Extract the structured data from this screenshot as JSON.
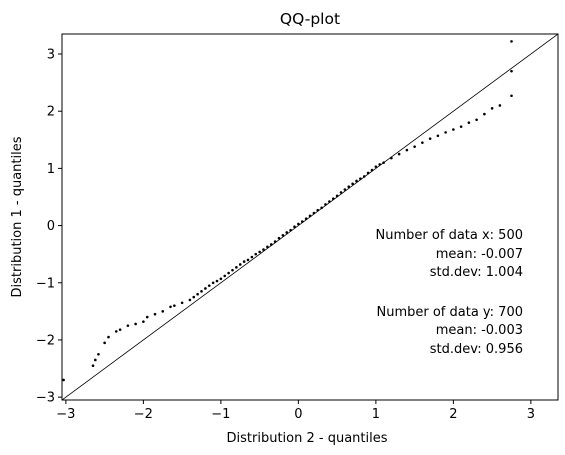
{
  "chart_data": {
    "type": "scatter",
    "title": "QQ-plot",
    "xlabel": "Distribution 2 - quantiles",
    "ylabel": "Distribution 1 - quantiles",
    "xlim": [
      -3.05,
      3.35
    ],
    "ylim": [
      -3.05,
      3.35
    ],
    "xticks": [
      -3,
      -2,
      -1,
      0,
      1,
      2,
      3
    ],
    "yticks": [
      -3,
      -2,
      -1,
      0,
      1,
      2,
      3
    ],
    "grid": false,
    "reference_line": {
      "x": [
        -3.05,
        3.35
      ],
      "y": [
        -3.05,
        3.35
      ]
    },
    "series": [
      {
        "marker_color": "#000000",
        "x": [
          -3.03,
          -2.65,
          -2.62,
          -2.58,
          -2.5,
          -2.45,
          -2.35,
          -2.3,
          -2.2,
          -2.1,
          -2.0,
          -1.95,
          -1.85,
          -1.75,
          -1.65,
          -1.6,
          -1.5,
          -1.4,
          -1.35,
          -1.3,
          -1.25,
          -1.2,
          -1.15,
          -1.1,
          -1.05,
          -1.0,
          -0.95,
          -0.9,
          -0.85,
          -0.8,
          -0.75,
          -0.7,
          -0.65,
          -0.6,
          -0.55,
          -0.5,
          -0.45,
          -0.4,
          -0.35,
          -0.3,
          -0.25,
          -0.2,
          -0.15,
          -0.1,
          -0.05,
          0.0,
          0.05,
          0.1,
          0.15,
          0.2,
          0.25,
          0.3,
          0.35,
          0.4,
          0.45,
          0.5,
          0.55,
          0.6,
          0.65,
          0.7,
          0.75,
          0.8,
          0.85,
          0.9,
          0.95,
          1.0,
          1.05,
          1.1,
          1.2,
          1.3,
          1.4,
          1.5,
          1.6,
          1.7,
          1.8,
          1.9,
          2.0,
          2.1,
          2.2,
          2.3,
          2.4,
          2.5,
          2.6,
          2.75,
          2.75,
          2.75
        ],
        "y": [
          -2.7,
          -2.45,
          -2.35,
          -2.25,
          -2.05,
          -1.95,
          -1.85,
          -1.82,
          -1.75,
          -1.72,
          -1.68,
          -1.6,
          -1.55,
          -1.5,
          -1.42,
          -1.4,
          -1.35,
          -1.3,
          -1.25,
          -1.2,
          -1.15,
          -1.1,
          -1.05,
          -1.0,
          -0.97,
          -0.93,
          -0.88,
          -0.83,
          -0.78,
          -0.73,
          -0.68,
          -0.63,
          -0.6,
          -0.55,
          -0.5,
          -0.46,
          -0.42,
          -0.37,
          -0.33,
          -0.28,
          -0.22,
          -0.17,
          -0.12,
          -0.08,
          -0.02,
          0.03,
          0.07,
          0.12,
          0.17,
          0.22,
          0.27,
          0.31,
          0.37,
          0.42,
          0.47,
          0.52,
          0.58,
          0.63,
          0.68,
          0.73,
          0.78,
          0.82,
          0.86,
          0.92,
          0.97,
          1.03,
          1.07,
          1.1,
          1.18,
          1.25,
          1.32,
          1.38,
          1.45,
          1.52,
          1.57,
          1.63,
          1.68,
          1.73,
          1.8,
          1.85,
          1.95,
          2.05,
          2.1,
          2.27,
          2.7,
          3.22
        ]
      }
    ],
    "annotations": [
      "Number of data x: 500",
      "mean: -0.007",
      "std.dev: 1.004",
      "Number of data y: 700",
      "mean: -0.003",
      "std.dev: 0.956"
    ]
  }
}
